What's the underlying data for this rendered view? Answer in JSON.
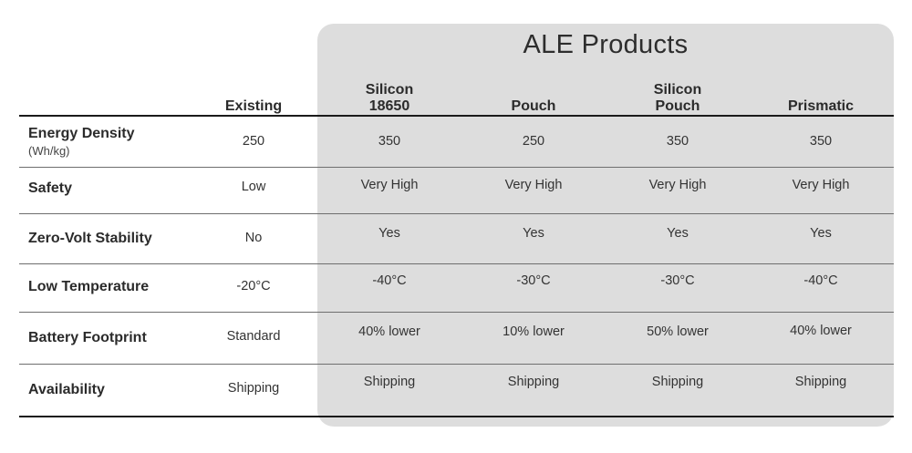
{
  "group_title": "ALE Products",
  "columns": {
    "existing": "Existing",
    "silicon_18650": [
      "Silicon",
      "18650"
    ],
    "pouch": "Pouch",
    "silicon_pouch": [
      "Silicon",
      "Pouch"
    ],
    "prismatic": "Prismatic"
  },
  "rows": [
    {
      "label": "Energy Density",
      "unit": "(Wh/kg)",
      "values": [
        "250",
        "350",
        "250",
        "350",
        "350"
      ]
    },
    {
      "label": "Safety",
      "values": [
        "Low",
        "Very High",
        "Very High",
        "Very High",
        "Very High"
      ]
    },
    {
      "label": "Zero-Volt Stability",
      "values": [
        "No",
        "Yes",
        "Yes",
        "Yes",
        "Yes"
      ]
    },
    {
      "label": "Low Temperature",
      "values": [
        "-20°C",
        "-40°C",
        "-30°C",
        "-30°C",
        "-40°C"
      ]
    },
    {
      "label": "Battery Footprint",
      "values": [
        "Standard",
        "40% lower",
        "10% lower",
        "50% lower",
        "40% lower"
      ]
    },
    {
      "label": "Availability",
      "values": [
        "Shipping",
        "Shipping",
        "Shipping",
        "Shipping",
        "Shipping"
      ]
    }
  ]
}
